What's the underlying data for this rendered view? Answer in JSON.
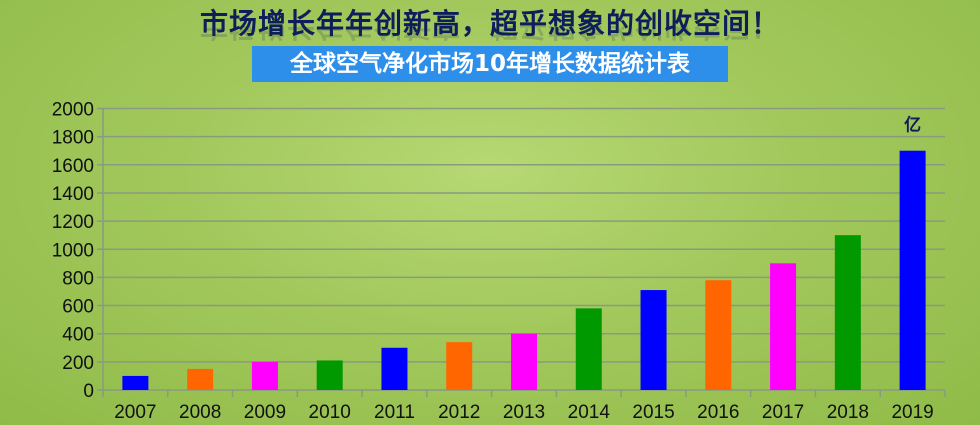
{
  "header": {
    "title": "市场增长年年创新高，超乎想象的创收空间！",
    "subtitle": "全球空气净化市场10年增长数据统计表"
  },
  "chart_data": {
    "type": "bar",
    "title": "全球空气净化市场10年增长数据统计表",
    "unit_label": "亿",
    "categories": [
      "2007",
      "2008",
      "2009",
      "2010",
      "2011",
      "2012",
      "2013",
      "2014",
      "2015",
      "2016",
      "2017",
      "2018",
      "2019"
    ],
    "values": [
      100,
      150,
      200,
      210,
      300,
      340,
      400,
      580,
      710,
      780,
      900,
      1100,
      1700
    ],
    "colors": [
      "#0000ff",
      "#ff6600",
      "#ff00ff",
      "#009900",
      "#0000ff",
      "#ff6600",
      "#ff00ff",
      "#009900",
      "#0000ff",
      "#ff6600",
      "#ff00ff",
      "#009900",
      "#0000ff"
    ],
    "ylim": [
      0,
      2000
    ],
    "yticks": [
      0,
      200,
      400,
      600,
      800,
      1000,
      1200,
      1400,
      1600,
      1800,
      2000
    ],
    "grid": true,
    "legend": "none"
  }
}
